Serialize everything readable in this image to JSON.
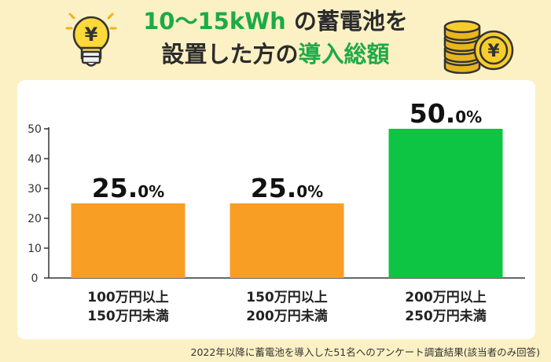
{
  "header": {
    "line1_highlight": "10〜15kWh",
    "line1_rest": "の蓄電池を",
    "line2_rest": "設置した方の",
    "line2_highlight": "導入総額"
  },
  "icons": {
    "left": "lightbulb-yen-icon",
    "right": "coins-yen-icon",
    "yen_symbol": "¥"
  },
  "footnote": "2022年以降に蓄電池を導入した51名へのアンケート調査結果(該当者のみ回答)",
  "colors": {
    "background": "#FBF1C4",
    "bar_orange": "#F99E25",
    "bar_green": "#0DC443",
    "title_green": "#1DAA46"
  },
  "chart_data": {
    "type": "bar",
    "categories": [
      [
        "100万円以上",
        "150万円未満"
      ],
      [
        "150万円以上",
        "200万円未満"
      ],
      [
        "200万円以上",
        "250万円未満"
      ]
    ],
    "values": [
      25.0,
      25.0,
      50.0
    ],
    "value_labels": [
      {
        "main": "25.",
        "small": "0%"
      },
      {
        "main": "25.",
        "small": "0%"
      },
      {
        "main": "50.",
        "small": "0%"
      }
    ],
    "bar_colors": [
      "#F99E25",
      "#F99E25",
      "#0DC443"
    ],
    "yticks": [
      0,
      10,
      20,
      30,
      40,
      50
    ],
    "ylim": [
      0,
      50
    ],
    "xlabel": "",
    "ylabel": "",
    "grid": false
  }
}
